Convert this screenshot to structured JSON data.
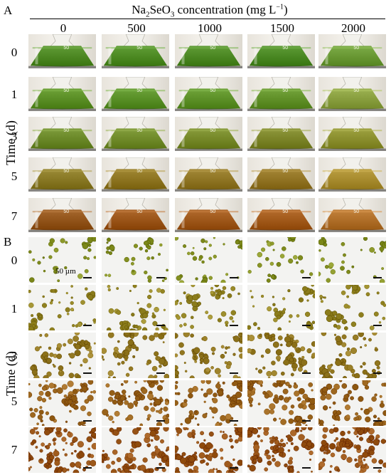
{
  "panelA": {
    "letter": "A"
  },
  "panelB": {
    "letter": "B"
  },
  "header": {
    "title_prefix": "Na",
    "sub1": "2",
    "title_mid": "SeO",
    "sub2": "3",
    "title_suffix": " concentration (mg L",
    "sup": "−1",
    "title_end": ")"
  },
  "columns": [
    "0",
    "500",
    "1000",
    "1500",
    "2000"
  ],
  "rows": [
    "0",
    "1",
    "3",
    "5",
    "7"
  ],
  "y_axis_label": "Time (d)",
  "flask_mark": "50",
  "scale_label": "50 µm",
  "colors": {
    "liquid": [
      [
        "#4f8a25",
        "#4f8c25",
        "#4e8a25",
        "#4c8a25",
        "#6b9a36"
      ],
      [
        "#5c9027",
        "#5a9128",
        "#5e9229",
        "#62922a",
        "#8aa040"
      ],
      [
        "#6c8a2a",
        "#718c2b",
        "#778a2a",
        "#7d862a",
        "#8c902f"
      ],
      [
        "#8a7a26",
        "#8f7622",
        "#917726",
        "#937525",
        "#a98d30"
      ],
      [
        "#94561c",
        "#9c561a",
        "#a0591c",
        "#a35b1c",
        "#b1702a"
      ]
    ],
    "cells": [
      "#8a9628",
      "#9a8b2a",
      "#9a7f28",
      "#a06a22",
      "#9e5a1c"
    ]
  }
}
